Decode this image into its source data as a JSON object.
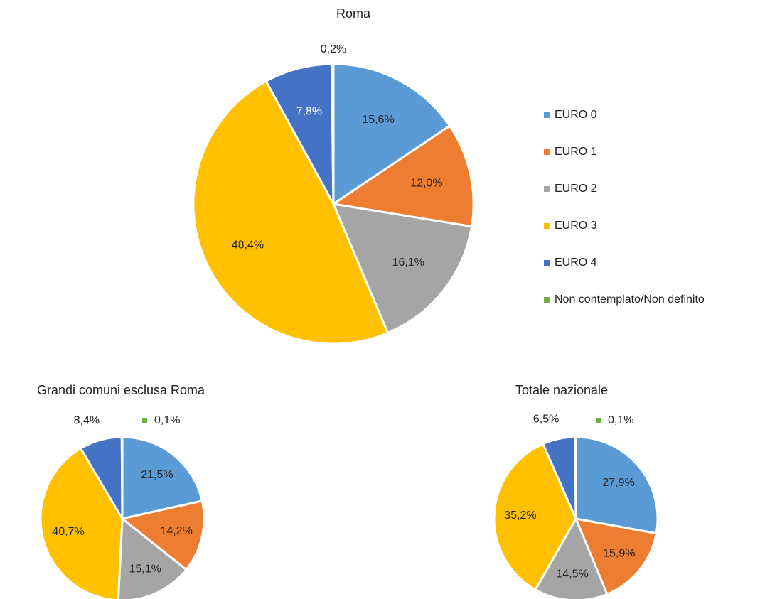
{
  "chart_data": [
    {
      "type": "pie",
      "title": "Roma",
      "categories": [
        "EURO 0",
        "EURO 1",
        "EURO 2",
        "EURO 3",
        "EURO 4",
        "Non contemplato/Non definito"
      ],
      "values": [
        15.6,
        12.0,
        16.1,
        48.4,
        7.8,
        0.2
      ],
      "value_labels": [
        "15,6%",
        "12,0%",
        "16,1%",
        "48,4%",
        "7,8%",
        "0,2%"
      ],
      "colors": [
        "#5b9bd5",
        "#ed7d31",
        "#a5a5a5",
        "#ffc000",
        "#4472c4",
        "#70ad47"
      ],
      "legend": "right"
    },
    {
      "type": "pie",
      "title": "Grandi comuni esclusa Roma",
      "categories": [
        "EURO 0",
        "EURO 1",
        "EURO 2",
        "EURO 3",
        "EURO 4",
        "Non contemplato/Non definito"
      ],
      "values": [
        21.5,
        14.2,
        15.1,
        40.7,
        8.4,
        0.1
      ],
      "value_labels": [
        "21,5%",
        "14,2%",
        "15,1%",
        "40,7%",
        "8,4%",
        "0,1%"
      ],
      "colors": [
        "#5b9bd5",
        "#ed7d31",
        "#a5a5a5",
        "#ffc000",
        "#4472c4",
        "#70ad47"
      ]
    },
    {
      "type": "pie",
      "title": "Totale nazionale",
      "categories": [
        "EURO 0",
        "EURO 1",
        "EURO 2",
        "EURO 3",
        "EURO 4",
        "Non contemplato/Non definito"
      ],
      "values": [
        27.9,
        15.9,
        14.5,
        35.2,
        6.5,
        0.1
      ],
      "value_labels": [
        "27,9%",
        "15,9%",
        "14,5%",
        "35,2%",
        "6,5%",
        "0,1%"
      ],
      "colors": [
        "#5b9bd5",
        "#ed7d31",
        "#a5a5a5",
        "#ffc000",
        "#4472c4",
        "#70ad47"
      ]
    }
  ]
}
